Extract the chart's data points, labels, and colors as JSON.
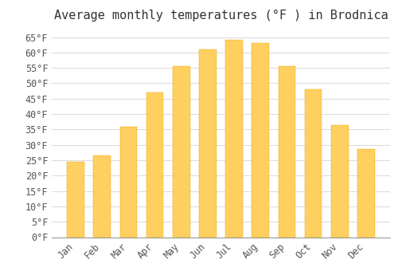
{
  "title": "Average monthly temperatures (°F ) in Brodnica",
  "months": [
    "Jan",
    "Feb",
    "Mar",
    "Apr",
    "May",
    "Jun",
    "Jul",
    "Aug",
    "Sep",
    "Oct",
    "Nov",
    "Dec"
  ],
  "values": [
    24.5,
    26.5,
    36.0,
    47.0,
    55.5,
    61.0,
    64.0,
    63.0,
    55.5,
    48.0,
    36.5,
    28.5
  ],
  "bar_color_top": "#FFB833",
  "bar_color_bottom": "#FFD060",
  "bar_edge_color": "#E8A800",
  "background_color": "#FFFFFF",
  "grid_color": "#DDDDDD",
  "text_color": "#555555",
  "ylim": [
    0,
    68
  ],
  "yticks": [
    0,
    5,
    10,
    15,
    20,
    25,
    30,
    35,
    40,
    45,
    50,
    55,
    60,
    65
  ],
  "title_fontsize": 11,
  "tick_fontsize": 8.5,
  "font_family": "monospace"
}
